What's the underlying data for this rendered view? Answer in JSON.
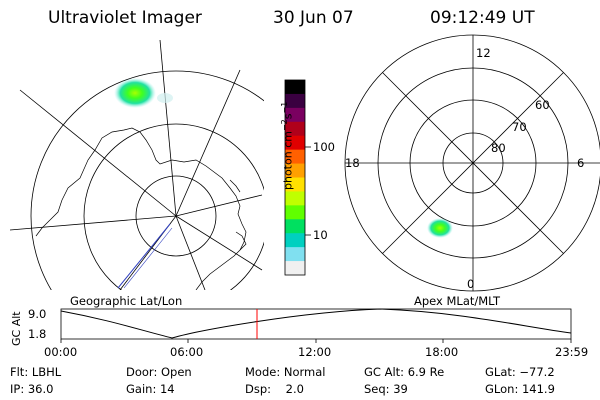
{
  "header": {
    "title": "Ultraviolet Imager",
    "date": "30 Jun 07",
    "time": "09:12:49 UT"
  },
  "geo_map": {
    "label": "Geographic Lat/Lon"
  },
  "polar_map": {
    "label": "Apex MLat/MLT",
    "mlt_labels": {
      "top": "12",
      "left": "18",
      "right": "6",
      "bottom": "0"
    },
    "lat_labels": [
      "60",
      "70",
      "80"
    ]
  },
  "colorbar": {
    "unit_label": "photon cm",
    "unit_exp1": "−2",
    "unit_s": "s",
    "unit_exp2": "−1",
    "ticks": [
      "100",
      "10"
    ],
    "colors": [
      "#000000",
      "#3a0040",
      "#7a0060",
      "#b0001a",
      "#e00000",
      "#ff6000",
      "#ffa000",
      "#ffe000",
      "#c0ff00",
      "#60ff00",
      "#00e060",
      "#00d0c0",
      "#80e0f0",
      "#f0f0f0"
    ]
  },
  "altitude_plot": {
    "ylabel": "GC Alt",
    "y_ticks": [
      "9.0",
      "1.8"
    ],
    "x_ticks": [
      "00:00",
      "06:00",
      "12:00",
      "18:00",
      "23:59"
    ],
    "marker_color": "#ff0000"
  },
  "footer": {
    "row1": [
      "Flt: LBHL",
      "Door: Open",
      "Mode: Normal",
      "GC Alt: 6.9 Re",
      "GLat: −77.2"
    ],
    "row2": [
      "IP: 36.0",
      "Gain: 14",
      "Dsp:    2.0",
      "Seq: 39",
      "GLon: 141.9"
    ]
  }
}
